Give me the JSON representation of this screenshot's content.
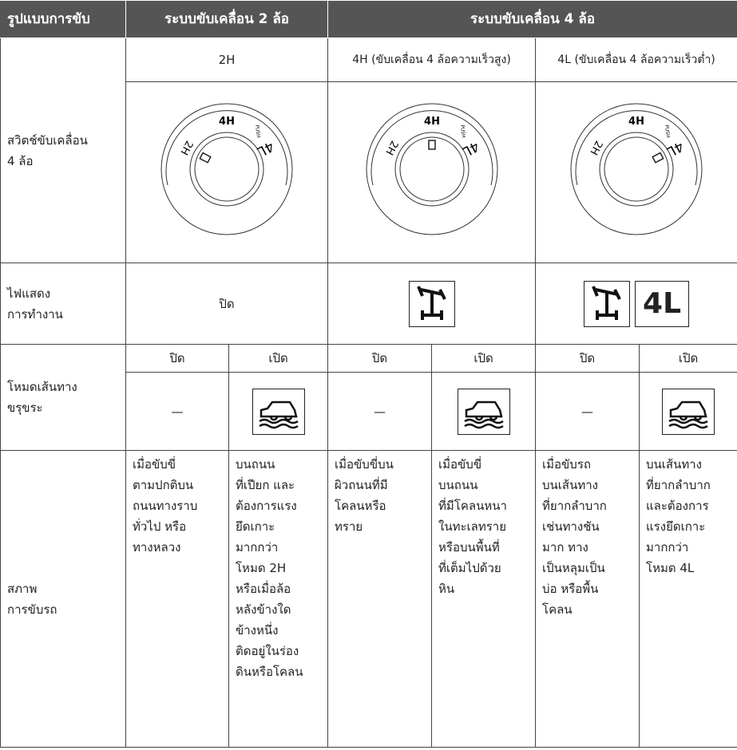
{
  "header": {
    "drive_type": "รูปแบบการขับ",
    "two_wd": "ระบบขับเคลื่อน 2 ล้อ",
    "four_wd": "ระบบขับเคลื่อน 4 ล้อ"
  },
  "modes": [
    "2H",
    "4H (ขับเคลื่อน 4 ล้อความเร็วสูง)",
    "4L (ขับเคลื่อน 4 ล้อความเร็วต่ำ)"
  ],
  "switch_row": {
    "label": [
      "สวิตช์ขับเคลื่อน",
      "4 ล้อ"
    ],
    "dial_labels": {
      "top": "4H",
      "left": "2H",
      "right": "4L",
      "push": "PUSH"
    }
  },
  "indicator_row": {
    "label": [
      "ไฟแสดง",
      "การทำงาน"
    ],
    "off": "ปิด",
    "icon_text": "4L"
  },
  "terrain_row": {
    "label": [
      "โหมดเส้นทาง",
      "ขรุขระ"
    ],
    "states": [
      "ปิด",
      "เปิด",
      "ปิด",
      "เปิด",
      "ปิด",
      "เปิด"
    ],
    "dash": "—"
  },
  "condition_row": {
    "label": [
      "สภาพ",
      "การขับรถ"
    ],
    "cells": [
      [
        "เมื่อขับขี่",
        "ตามปกติบน",
        "ถนนทางราบ",
        "ทั่วไป หรือ",
        "ทางหลวง"
      ],
      [
        "บนถนน",
        "ที่เปียก และ",
        "ต้องการแรง",
        "ยึดเกาะ",
        "มากกว่า",
        "โหมด 2H",
        "หรือเมื่อล้อ",
        "หลังข้างใด",
        "ข้างหนึ่ง",
        "ติดอยู่ในร่อง",
        "ดินหรือโคลน"
      ],
      [
        "เมื่อขับขี่บน",
        "ผิวถนนที่มี",
        "โคลนหรือ",
        "ทราย"
      ],
      [
        "เมื่อขับขี่",
        "บนถนน",
        "ที่มีโคลนหนา",
        "ในทะเลทราย",
        "หรือบนพื้นที่",
        "ที่เต็มไปด้วย",
        "หิน"
      ],
      [
        "เมื่อขับรถ",
        "บนเส้นทาง",
        "ที่ยากลำบาก",
        "เช่นทางชัน",
        "มาก ทาง",
        "เป็นหลุมเป็น",
        "บ่อ หรือพื้น",
        "โคลน"
      ],
      [
        "บนเส้นทาง",
        "ที่ยากลำบาก",
        "และต้องการ",
        "แรงยึดเกาะ",
        "มากกว่า",
        "โหมด 4L"
      ]
    ]
  }
}
